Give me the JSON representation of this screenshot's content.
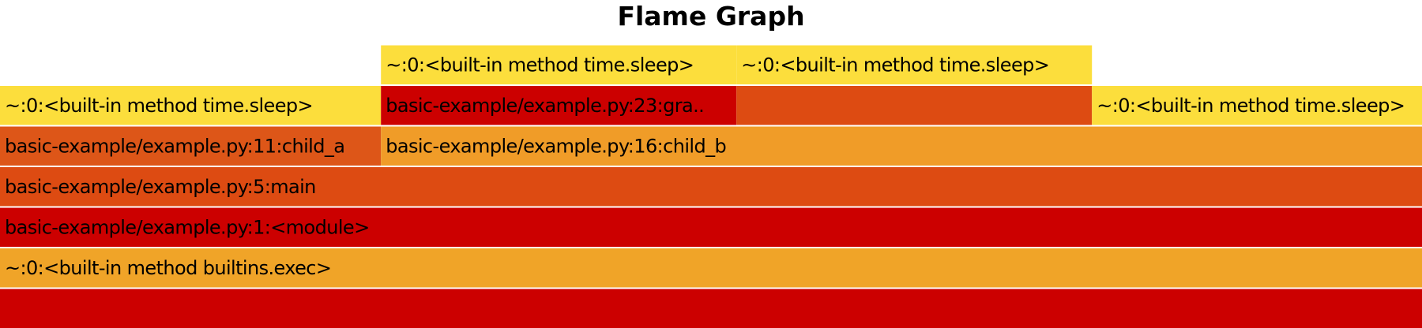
{
  "chart_data": {
    "type": "flame",
    "title": "Flame Graph",
    "x_total": 1.0,
    "frames": [
      {
        "label": "",
        "depth": 0,
        "start": 0.0,
        "width": 1.0,
        "color": "#cc0000"
      },
      {
        "label": "~:0:<built-in method builtins.exec>",
        "depth": 1,
        "start": 0.0,
        "width": 1.0,
        "color": "#f0a428"
      },
      {
        "label": "basic-example/example.py:1:<module>",
        "depth": 2,
        "start": 0.0,
        "width": 1.0,
        "color": "#cc0000"
      },
      {
        "label": "basic-example/example.py:5:main",
        "depth": 3,
        "start": 0.0,
        "width": 1.0,
        "color": "#dd4b12"
      },
      {
        "label": "basic-example/example.py:11:child_a",
        "depth": 4,
        "start": 0.0,
        "width": 0.2679,
        "color": "#dd5618"
      },
      {
        "label": "basic-example/example.py:16:child_b",
        "depth": 4,
        "start": 0.2679,
        "width": 0.7321,
        "color": "#f09c28"
      },
      {
        "label": "~:0:<built-in method time.sleep>",
        "depth": 5,
        "start": 0.0,
        "width": 0.2679,
        "color": "#fcde3c"
      },
      {
        "label": "basic-example/example.py:23:gra..",
        "depth": 5,
        "start": 0.2679,
        "width": 0.25,
        "color": "#cc0000"
      },
      {
        "label": "",
        "depth": 5,
        "start": 0.5179,
        "width": 0.25,
        "color": "#dd4b12"
      },
      {
        "label": "~:0:<built-in method time.sleep>",
        "depth": 5,
        "start": 0.7679,
        "width": 0.2321,
        "color": "#fcde3c"
      },
      {
        "label": "~:0:<built-in method time.sleep>",
        "depth": 6,
        "start": 0.2679,
        "width": 0.25,
        "color": "#fcde3c"
      },
      {
        "label": "~:0:<built-in method time.sleep>",
        "depth": 6,
        "start": 0.5179,
        "width": 0.25,
        "color": "#fcde3c"
      }
    ]
  }
}
